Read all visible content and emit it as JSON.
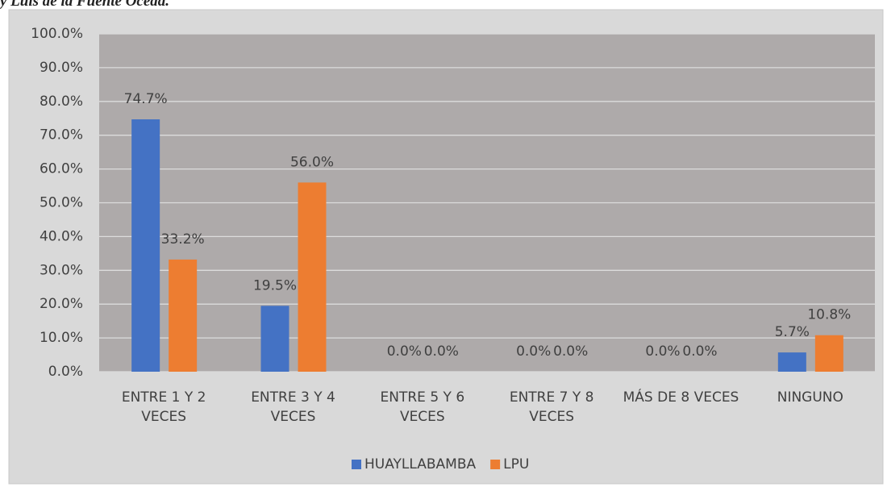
{
  "caption": "y Luis de la Fuente Oceda.",
  "chart_data": {
    "type": "bar",
    "categories": [
      "ENTRE 1 Y 2 VECES",
      "ENTRE 3 Y 4 VECES",
      "ENTRE 5 Y 6 VECES",
      "ENTRE 7 Y 8 VECES",
      "MÁS DE 8 VECES",
      "NINGUNO"
    ],
    "series": [
      {
        "name": "HUAYLLABAMBA",
        "color": "#4472c4",
        "values": [
          74.7,
          19.5,
          0,
          0,
          0,
          5.7
        ],
        "value_labels": [
          "74.7%",
          "19.5%",
          "0.0%",
          "0.0%",
          "0.0%",
          "5.7%"
        ]
      },
      {
        "name": "LPU",
        "color": "#ed7d31",
        "values": [
          33.2,
          56.0,
          0,
          0,
          0,
          10.8
        ],
        "value_labels": [
          "33.2%",
          "56.0%",
          "0.0%",
          "0.0%",
          "0.0%",
          "10.8%"
        ]
      }
    ],
    "ylim": [
      0,
      100
    ],
    "yticks": [
      {
        "value": 0,
        "label": "0.0%"
      },
      {
        "value": 10,
        "label": "10.0%"
      },
      {
        "value": 20,
        "label": "20.0%"
      },
      {
        "value": 30,
        "label": "30.0%"
      },
      {
        "value": 40,
        "label": "40.0%"
      },
      {
        "value": 50,
        "label": "50.0%"
      },
      {
        "value": 60,
        "label": "60.0%"
      },
      {
        "value": 70,
        "label": "70.0%"
      },
      {
        "value": 80,
        "label": "80.0%"
      },
      {
        "value": 90,
        "label": "90.0%"
      },
      {
        "value": 100,
        "label": "100.0%"
      }
    ],
    "grid": true,
    "legend": "bottom"
  }
}
